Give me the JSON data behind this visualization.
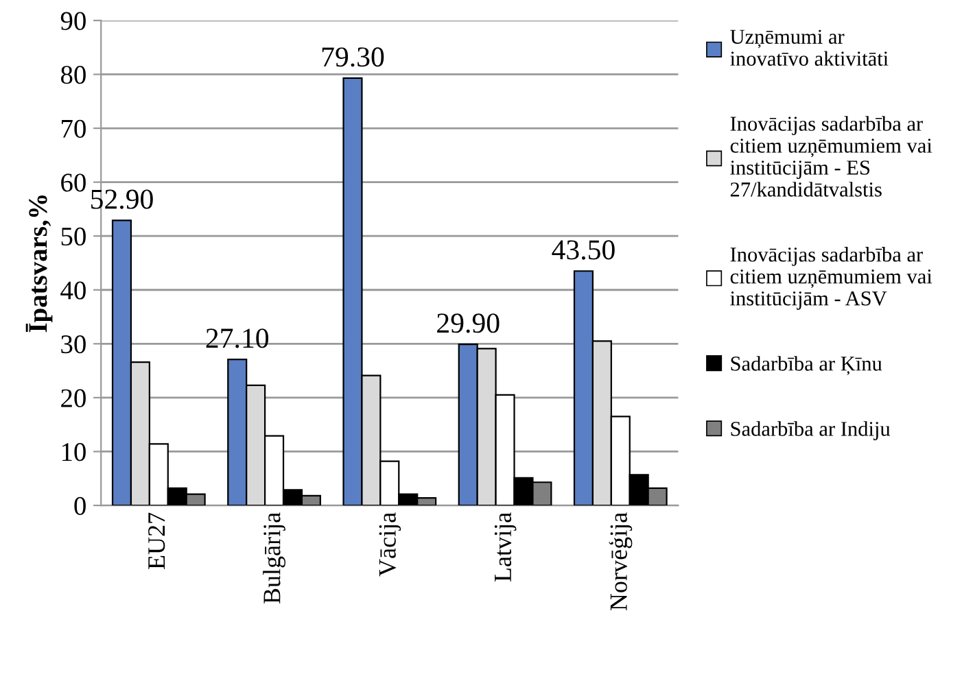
{
  "chart_data": {
    "type": "bar",
    "ylabel": "Īpatsvars,%",
    "categories": [
      "EU27",
      "Bulgārija",
      "Vācija",
      "Latvija",
      "Norvēģija"
    ],
    "series": [
      {
        "name": "Uzņēmumi ar\ninovatīvo aktivitāti",
        "color": "#5a7fc4",
        "values": [
          52.9,
          27.1,
          79.3,
          29.9,
          43.5
        ],
        "value_labels": [
          "52.90",
          "27.10",
          "79.30",
          "29.90",
          "43.50"
        ]
      },
      {
        "name": "Inovācijas sadarbība ar\ncitiem uzņēmumiem vai\ninstitūcijām - ES\n27/kandidātvalstis",
        "color": "#d9d9d9",
        "values": [
          26.6,
          22.3,
          24.1,
          29.1,
          30.5
        ]
      },
      {
        "name": "Inovācijas sadarbība ar\ncitiem uzņēmumiem vai\ninstitūcijām - ASV",
        "color": "#ffffff",
        "values": [
          11.4,
          12.9,
          8.2,
          20.5,
          16.5
        ]
      },
      {
        "name": "Sadarbība ar Ķīnu",
        "color": "#000000",
        "values": [
          3.2,
          2.9,
          2.1,
          5.1,
          5.7
        ]
      },
      {
        "name": "Sadarbība ar Indiju",
        "color": "#808080",
        "values": [
          2.1,
          1.8,
          1.4,
          4.3,
          3.2
        ]
      }
    ],
    "ylim": [
      0,
      90
    ],
    "yticks": [
      0,
      10,
      20,
      30,
      40,
      50,
      60,
      70,
      80,
      90
    ],
    "grid": "y",
    "legend": "right"
  }
}
